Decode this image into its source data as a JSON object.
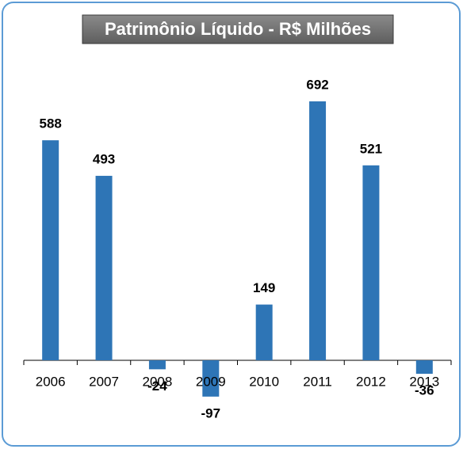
{
  "chart_data": {
    "type": "bar",
    "title": "Patrimônio Líquido - R$ Milhões",
    "categories": [
      "2006",
      "2007",
      "2008",
      "2009",
      "2010",
      "2011",
      "2012",
      "2013"
    ],
    "values": [
      588,
      493,
      -24,
      -97,
      149,
      692,
      521,
      -36
    ],
    "color": "#2e75b6"
  }
}
